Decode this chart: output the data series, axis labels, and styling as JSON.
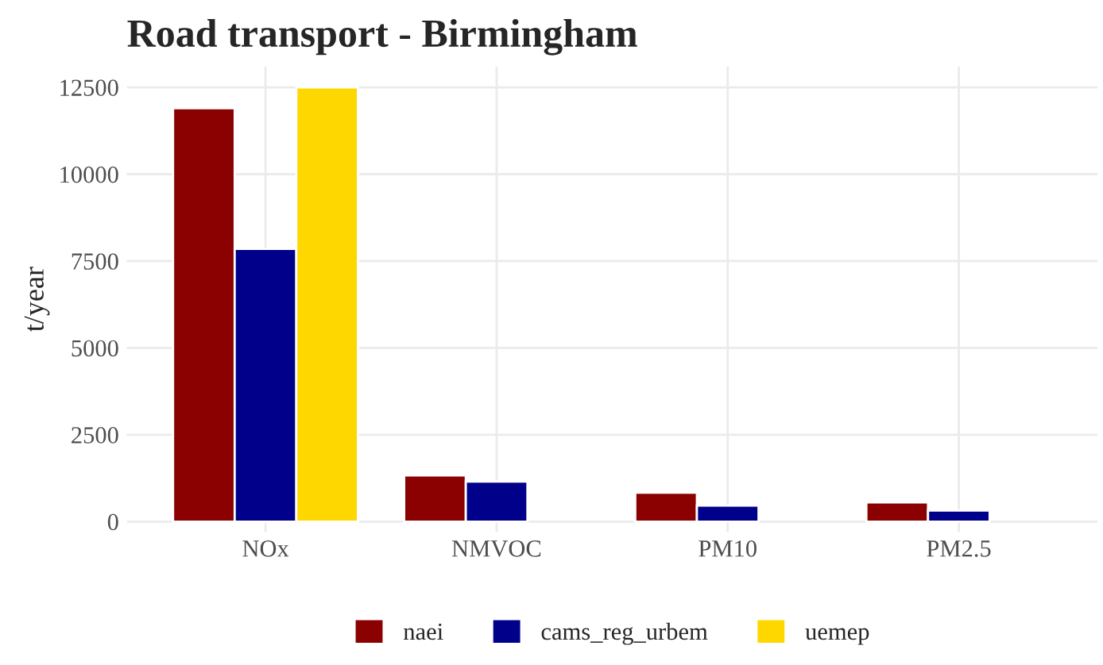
{
  "chart_data": {
    "type": "bar",
    "title": "Road transport - Birmingham",
    "ylabel": "t/year",
    "categories": [
      "NOx",
      "NMVOC",
      "PM10",
      "PM2.5"
    ],
    "series": [
      {
        "name": "naei",
        "color": "#8b0000",
        "values": [
          11900,
          1330,
          830,
          550
        ]
      },
      {
        "name": "cams_reg_urbem",
        "color": "#00008b",
        "values": [
          7850,
          1150,
          460,
          320
        ]
      },
      {
        "name": "uemep",
        "color": "#ffd700",
        "values": [
          12500,
          null,
          null,
          null
        ]
      }
    ],
    "ylim": [
      -300,
      13100
    ],
    "yticks": [
      0,
      2500,
      5000,
      7500,
      10000,
      12500
    ],
    "grid": true,
    "legend": "bottom"
  }
}
